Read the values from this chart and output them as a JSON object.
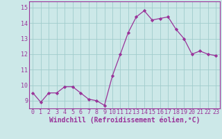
{
  "x": [
    0,
    1,
    2,
    3,
    4,
    5,
    6,
    7,
    8,
    9,
    10,
    11,
    12,
    13,
    14,
    15,
    16,
    17,
    18,
    19,
    20,
    21,
    22,
    23
  ],
  "y": [
    9.5,
    8.9,
    9.5,
    9.5,
    9.9,
    9.9,
    9.5,
    9.1,
    9.0,
    8.7,
    10.6,
    12.0,
    13.4,
    14.4,
    14.8,
    14.2,
    14.3,
    14.4,
    13.6,
    13.0,
    12.0,
    12.2,
    12.0,
    11.9
  ],
  "line_color": "#993399",
  "marker": "D",
  "marker_size": 2.2,
  "background_color": "#cce8e8",
  "grid_color": "#a0cccc",
  "xlabel": "Windchill (Refroidissement éolien,°C)",
  "ylim": [
    8.5,
    15.4
  ],
  "xlim": [
    -0.5,
    23.5
  ],
  "yticks": [
    9,
    10,
    11,
    12,
    13,
    14,
    15
  ],
  "xticks": [
    0,
    1,
    2,
    3,
    4,
    5,
    6,
    7,
    8,
    9,
    10,
    11,
    12,
    13,
    14,
    15,
    16,
    17,
    18,
    19,
    20,
    21,
    22,
    23
  ],
  "tick_fontsize": 6.0,
  "xlabel_fontsize": 7.0,
  "xlabel_bold": true
}
